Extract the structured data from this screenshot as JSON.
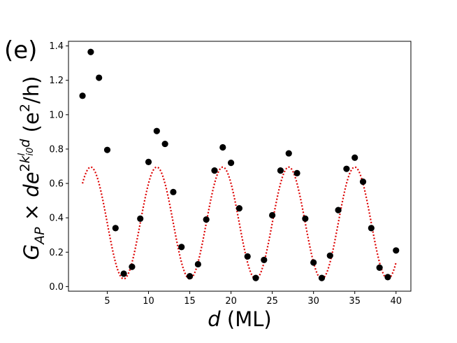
{
  "panel_label": "(e)",
  "chart_data": {
    "type": "scatter",
    "xlabel": "d (ML)",
    "xlabel_parts": {
      "var": "d",
      "unit": " (ML)"
    },
    "ylabel_parts": {
      "g": "G",
      "g_sub": "AP",
      "times": " × ",
      "d": "d",
      "e": "e",
      "exp_2": "2",
      "exp_k": "k",
      "exp_k_sup": "I",
      "exp_k_sub": "i0",
      "exp_d": "d",
      "unit_open": " (e",
      "unit_sup": "2",
      "unit_close": "/h)"
    },
    "xlim": [
      0.3,
      41.8
    ],
    "ylim": [
      -0.027,
      1.427
    ],
    "xticks": [
      5,
      10,
      15,
      20,
      25,
      30,
      35,
      40
    ],
    "yticks": [
      0.0,
      0.2,
      0.4,
      0.6,
      0.8,
      1.0,
      1.2,
      1.4
    ],
    "ytick_labels": [
      "0.0",
      "0.2",
      "0.4",
      "0.6",
      "0.8",
      "1.0",
      "1.2",
      "1.4"
    ],
    "series": [
      {
        "name": "data",
        "kind": "scatter",
        "color": "#000000",
        "x": [
          2,
          3,
          4,
          5,
          6,
          7,
          8,
          9,
          10,
          11,
          12,
          13,
          14,
          15,
          16,
          17,
          18,
          19,
          20,
          21,
          22,
          23,
          24,
          25,
          26,
          27,
          28,
          29,
          30,
          31,
          32,
          33,
          34,
          35,
          36,
          37,
          38,
          39,
          40
        ],
        "y": [
          1.11,
          1.365,
          1.215,
          0.795,
          0.34,
          0.075,
          0.115,
          0.395,
          0.725,
          0.905,
          0.83,
          0.55,
          0.23,
          0.06,
          0.13,
          0.39,
          0.675,
          0.81,
          0.72,
          0.455,
          0.175,
          0.05,
          0.155,
          0.415,
          0.675,
          0.775,
          0.66,
          0.395,
          0.14,
          0.05,
          0.18,
          0.445,
          0.685,
          0.75,
          0.61,
          0.34,
          0.11,
          0.055,
          0.21
        ]
      },
      {
        "name": "fit",
        "kind": "line",
        "style": "dotted",
        "color": "#dd0000",
        "formula": "y = 0.37 + 0.325*cos(2*pi*(x - 3)/8)",
        "x_range": [
          2,
          40
        ],
        "amplitude": 0.325,
        "offset": 0.37,
        "period": 8,
        "phase_x": 3
      }
    ]
  }
}
